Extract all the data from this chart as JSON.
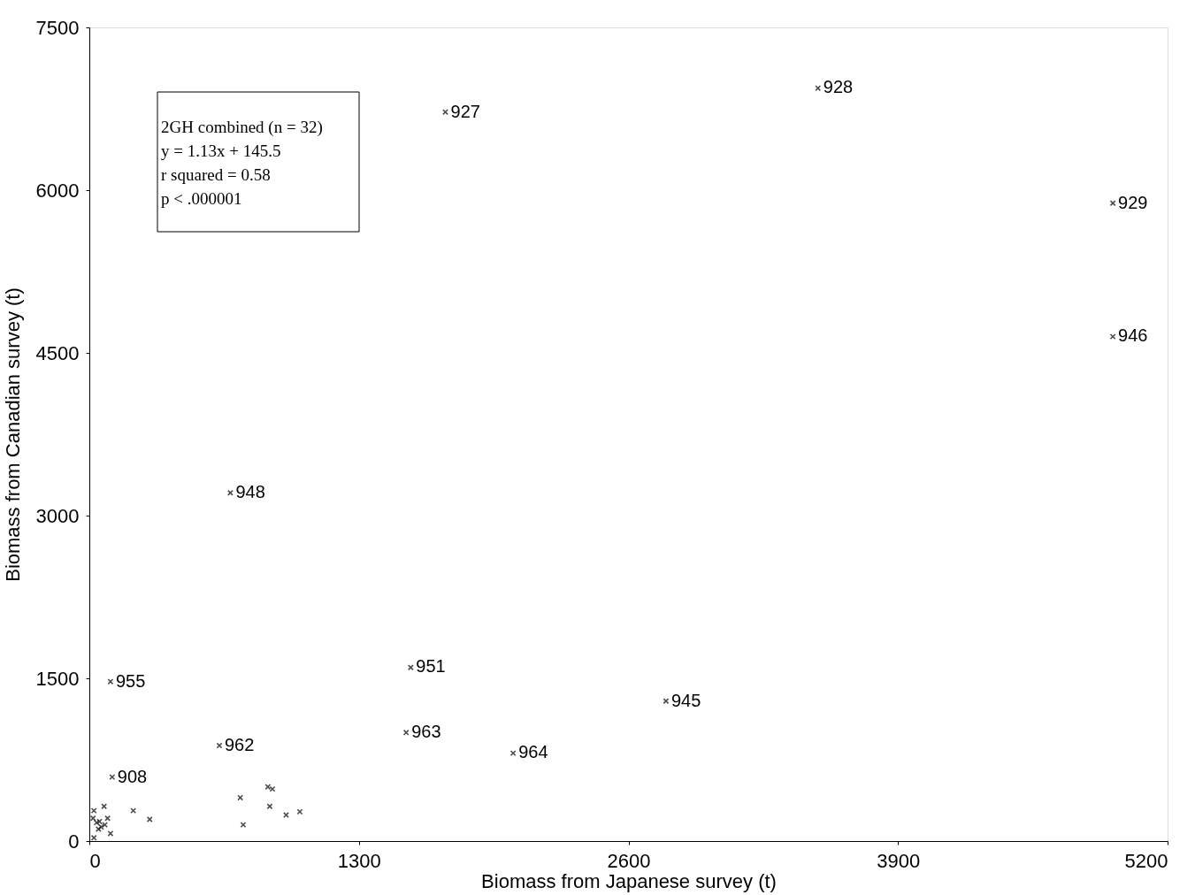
{
  "chart_data": {
    "type": "scatter",
    "xlabel": "Biomass from Japanese survey (t)",
    "ylabel": "Biomass from Canadian survey (t)",
    "x": [
      1717,
      3514,
      4936,
      4936,
      680,
      102,
      1550,
      2781,
      627,
      1528,
      2044,
      110,
      22,
      71,
      212,
      291,
      88,
      35,
      57,
      44,
      102,
      22,
      49,
      75,
      18,
      728,
      742,
      861,
      883,
      870,
      949,
      1015
    ],
    "series": [
      {
        "color": "#000000",
        "values": [
          6720,
          6940,
          5880,
          4650,
          3210,
          1470,
          1600,
          1290,
          880,
          1000,
          810,
          590,
          280,
          320,
          280,
          200,
          210,
          170,
          130,
          110,
          70,
          30,
          180,
          150,
          210,
          400,
          150,
          500,
          480,
          320,
          240,
          270
        ]
      }
    ],
    "xlim": [
      0,
      5200
    ],
    "xticks": [
      0,
      1300,
      2600,
      3900,
      5200
    ],
    "ylim": [
      0,
      7500
    ],
    "yticks": [
      0,
      1500,
      3000,
      4500,
      6000,
      7500
    ],
    "grid": false,
    "marker": "cross",
    "annotations": [
      "2GH combined (n = 32)",
      "y = 1.13x + 145.5",
      "r squared = 0.58",
      "p < .000001",
      {
        "text": "927",
        "x": 1717,
        "y": 6720
      },
      {
        "text": "928",
        "x": 3514,
        "y": 6943
      },
      {
        "text": "929",
        "x": 4936,
        "y": 5880
      },
      {
        "text": "946",
        "x": 4936,
        "y": 4654
      },
      {
        "text": "948",
        "x": 680,
        "y": 3214
      },
      {
        "text": "955",
        "x": 102,
        "y": 1466
      },
      {
        "text": "951",
        "x": 1550,
        "y": 1603
      },
      {
        "text": "945",
        "x": 2781,
        "y": 1286
      },
      {
        "text": "962",
        "x": 627,
        "y": 883
      },
      {
        "text": "963",
        "x": 1528,
        "y": 1003
      },
      {
        "text": "964",
        "x": 2044,
        "y": 814
      },
      {
        "text": "908",
        "x": 110,
        "y": 591
      }
    ]
  }
}
